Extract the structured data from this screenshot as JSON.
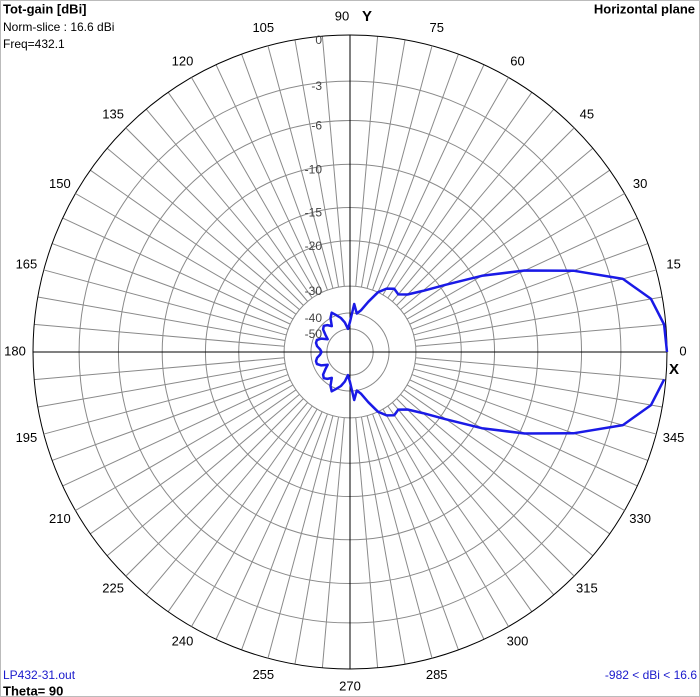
{
  "chart_data": {
    "type": "polar",
    "title": "Tot-gain [dBi]",
    "subtitle": "Norm-slice : 16.6 dBi",
    "frequency": "Freq=432.1",
    "plane": "Horizontal plane",
    "y_axis_label": "Y",
    "x_axis_label": "X",
    "file": "LP432-31.out",
    "range_text": "-982 < dBi < 16.6",
    "theta_text": "Theta= 90",
    "color": "#1a1ae6",
    "theta": [
      0,
      5,
      10,
      15,
      20,
      25,
      30,
      35,
      40,
      45,
      50,
      55,
      60,
      65,
      70,
      75,
      80,
      85,
      90,
      95,
      100,
      105,
      110,
      115,
      120,
      125,
      130,
      135,
      140,
      145,
      150,
      155,
      160,
      165,
      170,
      175,
      180,
      185,
      190,
      195,
      200,
      205,
      210,
      215,
      220,
      225,
      230,
      235,
      240,
      245,
      250,
      255,
      260,
      265,
      270,
      275,
      280,
      285,
      290,
      295,
      300,
      305,
      310,
      315,
      320,
      325,
      330,
      335,
      340,
      345,
      350,
      355
    ],
    "values": [
      0,
      -0.1,
      -0.7,
      -2.2,
      -5.5,
      -9.5,
      -14,
      -19,
      -23,
      -26,
      -27.5,
      -27,
      -28,
      -30,
      -34,
      -38,
      -40,
      -36,
      -45,
      -50,
      -45,
      -42,
      -40,
      -38,
      -40,
      -44,
      -42,
      -41,
      -42,
      -45,
      -48,
      -44,
      -42,
      -42,
      -43,
      -45,
      -46,
      -45,
      -43,
      -42,
      -42,
      -44,
      -48,
      -45,
      -42,
      -41,
      -42,
      -44,
      -40,
      -38,
      -40,
      -42,
      -45,
      -50,
      -45,
      -36,
      -40,
      -38,
      -34,
      -30,
      -28,
      -27,
      -27.5,
      -26,
      -23,
      -19,
      -14,
      -9.5,
      -5.5,
      -2.2,
      -0.7,
      -0.1
    ],
    "rticks": [
      0,
      -3,
      -6,
      -10,
      -15,
      -20,
      -30,
      -40,
      -50
    ],
    "angle_ticks": [
      0,
      15,
      30,
      45,
      60,
      75,
      90,
      105,
      120,
      135,
      150,
      165,
      180,
      195,
      210,
      225,
      240,
      255,
      270,
      285,
      300,
      315,
      330,
      345
    ],
    "angle_grid_step": 5
  }
}
